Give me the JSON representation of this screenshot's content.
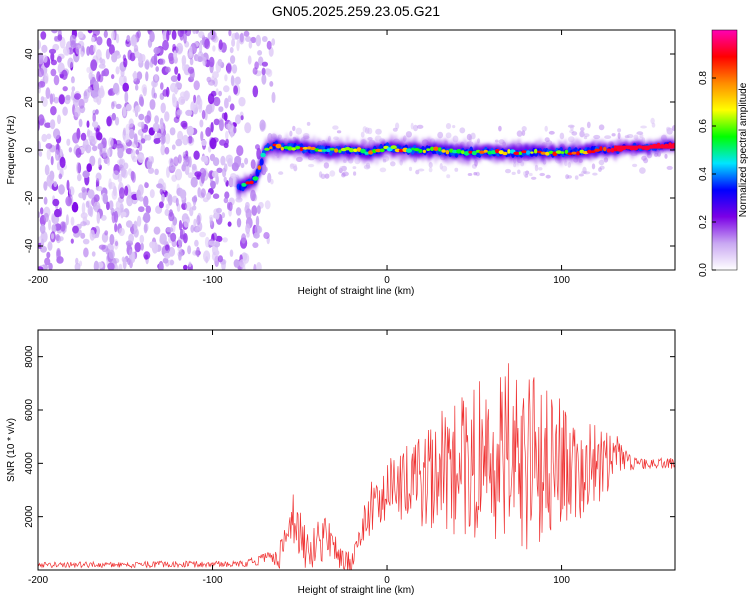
{
  "title": "GN05.2025.259.23.05.G21",
  "chart_data": [
    {
      "type": "heatmap",
      "name": "spectrogram",
      "xlabel": "Height of straight line (km)",
      "ylabel": "Frequency (Hz)",
      "xlim": [
        -200,
        165
      ],
      "ylim": [
        -50,
        50
      ],
      "xticks": [
        -200,
        -100,
        0,
        100
      ],
      "yticks": [
        -40,
        -20,
        0,
        20,
        40
      ],
      "noise_region_km": [
        -200,
        -65
      ],
      "carrier_track": {
        "x": [
          -85,
          -80,
          -75,
          -70,
          -65,
          -60,
          -50,
          -40,
          -30,
          -20,
          -10,
          0,
          10,
          20,
          30,
          40,
          50,
          60,
          70,
          80,
          90,
          100,
          110,
          120,
          130,
          140,
          150,
          160,
          165
        ],
        "y": [
          -16,
          -14,
          -12,
          0,
          2,
          1,
          1,
          0,
          0,
          0,
          -1,
          1,
          0,
          0,
          0,
          -1,
          -1,
          -1,
          -1,
          -1,
          -1,
          -1,
          -1,
          0,
          0,
          1,
          1,
          2,
          2
        ]
      },
      "colorbar": {
        "label": "Normalized spectral amplitude",
        "range": [
          0,
          1
        ],
        "ticks": [
          "0.0",
          "0.2",
          "0.4",
          "0.6",
          "0.8"
        ],
        "tick_values": [
          0.0,
          0.2,
          0.4,
          0.6,
          0.8
        ],
        "colors": [
          "#ffffff",
          "#c9a8f2",
          "#7b00e6",
          "#0000ff",
          "#00e5ff",
          "#00ff00",
          "#ffff00",
          "#ff8c00",
          "#ff0000",
          "#ff00b4"
        ]
      }
    },
    {
      "type": "line",
      "name": "snr",
      "xlabel": "Height of straight line (km)",
      "ylabel": "SNR (10 * v/v)",
      "xlim": [
        -200,
        165
      ],
      "ylim": [
        0,
        9000
      ],
      "xticks": [
        -200,
        -100,
        0,
        100
      ],
      "yticks": [
        2000,
        4000,
        6000,
        8000
      ],
      "color": "#ef3232",
      "series": {
        "x": [
          -200,
          -150,
          -100,
          -80,
          -70,
          -62,
          -55,
          -50,
          -45,
          -40,
          -35,
          -30,
          -25,
          -20,
          -15,
          -10,
          -5,
          0,
          10,
          20,
          30,
          40,
          50,
          60,
          70,
          75,
          80,
          90,
          100,
          110,
          120,
          130,
          140,
          150,
          165
        ],
        "center": [
          200,
          200,
          220,
          260,
          400,
          500,
          1800,
          1400,
          600,
          900,
          1200,
          700,
          300,
          300,
          1500,
          2200,
          2800,
          3000,
          3200,
          3400,
          3700,
          3900,
          4000,
          4200,
          4300,
          4300,
          4200,
          4100,
          4000,
          3900,
          3900,
          4100,
          4000,
          4000,
          4000
        ],
        "spread": [
          100,
          120,
          120,
          150,
          250,
          500,
          900,
          1200,
          700,
          900,
          800,
          700,
          400,
          400,
          800,
          1000,
          1200,
          1300,
          1500,
          1800,
          2200,
          2600,
          3000,
          3400,
          3600,
          3900,
          3500,
          3000,
          2400,
          2000,
          1500,
          900,
          250,
          200,
          200
        ]
      }
    }
  ]
}
